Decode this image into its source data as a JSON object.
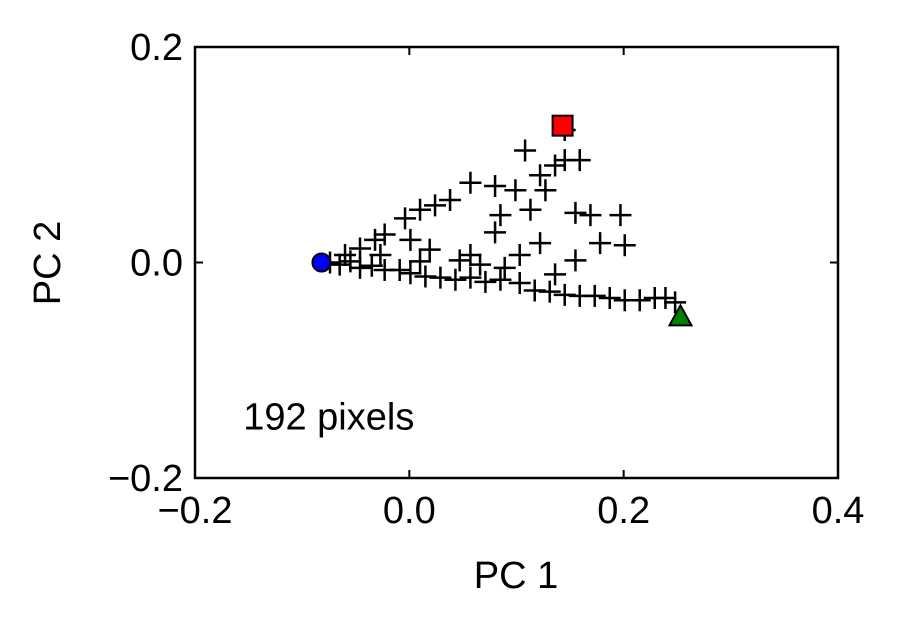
{
  "chart_data": {
    "type": "scatter",
    "xlabel": "PC 1",
    "ylabel": "PC 2",
    "annotation": "192 pixels",
    "xlim": [
      -0.2,
      0.4
    ],
    "ylim": [
      -0.2,
      0.2
    ],
    "xticks": [
      {
        "value": -0.2,
        "label": "−0.2"
      },
      {
        "value": 0,
        "label": "0.0"
      },
      {
        "value": 0.2,
        "label": "0.2"
      },
      {
        "value": 0.4,
        "label": "0.4"
      }
    ],
    "yticks": [
      {
        "value": -0.2,
        "label": "−0.2"
      },
      {
        "value": 0,
        "label": "0.0"
      },
      {
        "value": 0.2,
        "label": "0.2"
      }
    ],
    "series": [
      {
        "marker": "plus",
        "color": "#000000",
        "x": [
          -0.074,
          -0.065,
          -0.055,
          -0.046,
          -0.035,
          -0.023,
          -0.009,
          0.001,
          0.015,
          0.029,
          0.043,
          0.057,
          0.071,
          0.085,
          0.103,
          0.117,
          0.131,
          0.145,
          0.159,
          0.173,
          0.187,
          0.201,
          0.215,
          0.229,
          0.239,
          0.248,
          -0.06,
          -0.046,
          -0.032,
          -0.023,
          -0.004,
          0.01,
          0.024,
          0.038,
          0.057,
          0.08,
          0.099,
          0.108,
          0.122,
          0.136,
          0.145,
          0.159,
          0.127,
          0.113,
          0.085,
          0.08,
          0.057,
          0.047,
          0.066,
          0.103,
          0.122,
          0.155,
          0.178,
          0.169,
          0.155,
          0.197,
          0.201,
          0.145,
          0.001,
          0.019,
          -0.027,
          0.01,
          0.089,
          0.136
        ],
        "values": [
          0.0,
          -0.002,
          0.001,
          -0.005,
          -0.003,
          -0.007,
          -0.007,
          -0.01,
          -0.013,
          -0.014,
          -0.016,
          -0.014,
          -0.018,
          -0.016,
          -0.019,
          -0.026,
          -0.027,
          -0.03,
          -0.031,
          -0.031,
          -0.033,
          -0.035,
          -0.035,
          -0.033,
          -0.033,
          -0.037,
          0.007,
          0.013,
          0.021,
          0.026,
          0.041,
          0.049,
          0.053,
          0.058,
          0.074,
          0.071,
          0.067,
          0.104,
          0.081,
          0.09,
          0.095,
          0.095,
          0.067,
          0.049,
          0.044,
          0.028,
          0.007,
          0.002,
          -0.002,
          0.007,
          0.018,
          0.002,
          0.018,
          0.044,
          0.046,
          0.044,
          0.016,
          0.123,
          0.021,
          0.012,
          0.007,
          0.001,
          -0.005,
          -0.011
        ]
      },
      {
        "marker": "circle",
        "color": "#0000ff",
        "x": [
          -0.082
        ],
        "values": [
          0.0
        ]
      },
      {
        "marker": "square",
        "color": "#ff0000",
        "x": [
          0.143
        ],
        "values": [
          0.127
        ]
      },
      {
        "marker": "triangle",
        "color": "#008000",
        "x": [
          0.253
        ],
        "values": [
          -0.05
        ]
      }
    ]
  }
}
